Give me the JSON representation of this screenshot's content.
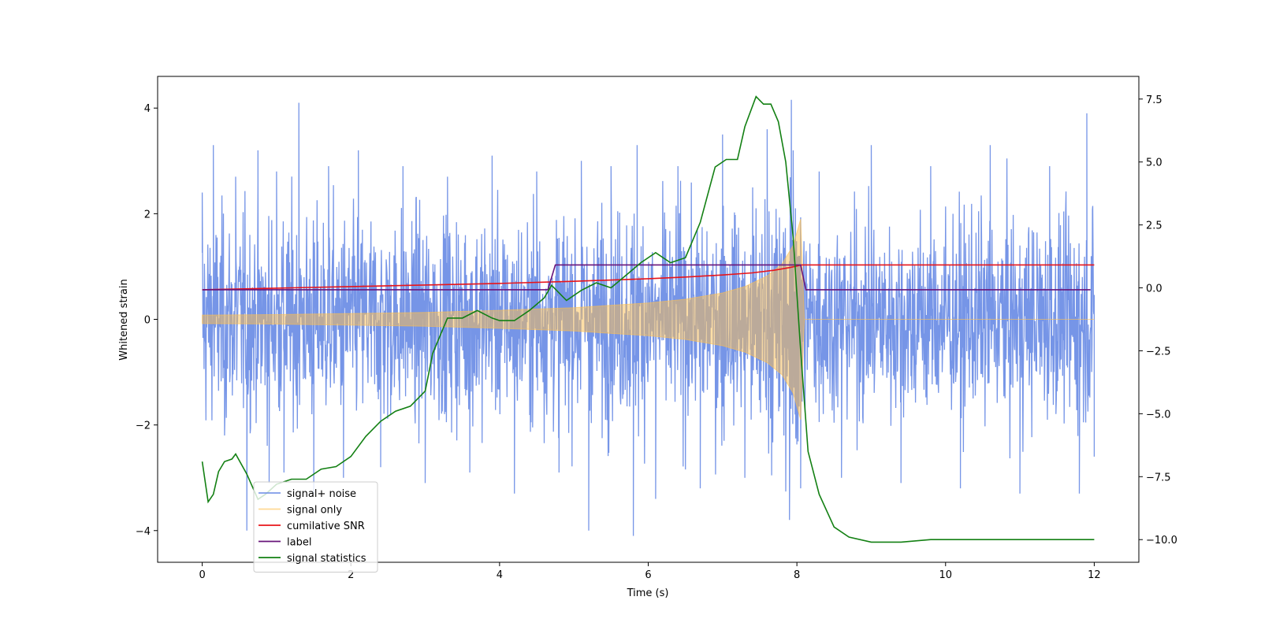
{
  "chart_data": {
    "type": "line",
    "title": "",
    "xlabel": "Time (s)",
    "ylabel_left": "Whitened strain",
    "ylabel_right": "",
    "xlim": [
      -0.6,
      12.6
    ],
    "ylim_left": [
      -4.6,
      4.6
    ],
    "ylim_right": [
      -10.9,
      8.4
    ],
    "grid": false,
    "legend_placement": "lower-left",
    "x_ticks": [
      0,
      2,
      4,
      6,
      8,
      10,
      12
    ],
    "x_tick_labels": [
      "0",
      "2",
      "4",
      "6",
      "8",
      "10",
      "12"
    ],
    "y_left_ticks": [
      -4,
      -2,
      0,
      2,
      4
    ],
    "y_left_tick_labels": [
      "−4",
      "−2",
      "0",
      "2",
      "4"
    ],
    "y_right_ticks": [
      -10,
      -7.5,
      -5,
      -2.5,
      0,
      2.5,
      5,
      7.5
    ],
    "y_right_tick_labels": [
      "−10.0",
      "−7.5",
      "−5.0",
      "−2.5",
      "0.0",
      "2.5",
      "5.0",
      "7.5"
    ],
    "series": [
      {
        "name": "signal+ noise",
        "axis": "left",
        "color": "#6f8fe6",
        "note": "noisy strain; peak samples",
        "x": [
          0.0,
          0.05,
          0.15,
          0.3,
          0.45,
          0.6,
          0.75,
          0.9,
          1.0,
          1.1,
          1.3,
          1.5,
          1.7,
          1.9,
          2.1,
          2.4,
          2.7,
          3.0,
          3.3,
          3.6,
          3.9,
          4.2,
          4.5,
          4.8,
          5.1,
          5.2,
          5.5,
          5.8,
          5.85,
          6.1,
          6.4,
          6.7,
          7.0,
          7.3,
          7.6,
          7.9,
          7.95,
          8.05,
          8.3,
          8.6,
          9.0,
          9.4,
          9.8,
          10.2,
          10.6,
          11.0,
          11.4,
          11.8,
          11.9,
          12.0
        ],
        "y": [
          2.4,
          -1.8,
          3.3,
          -2.2,
          2.7,
          -4.0,
          3.2,
          -3.1,
          2.8,
          -2.9,
          4.1,
          -3.3,
          2.9,
          -3.0,
          3.2,
          -2.8,
          2.9,
          -3.1,
          2.7,
          -2.9,
          3.1,
          -3.3,
          2.8,
          -2.9,
          3.0,
          -4.0,
          2.9,
          -4.1,
          3.3,
          -3.4,
          2.9,
          -3.2,
          3.5,
          -3.0,
          3.6,
          -3.8,
          3.2,
          -3.2,
          2.8,
          -3.0,
          3.3,
          -3.1,
          2.9,
          -3.2,
          3.3,
          -3.3,
          2.9,
          -3.3,
          3.9,
          -2.6
        ]
      },
      {
        "name": "signal only",
        "axis": "left",
        "color": "#ffc04d",
        "note": "chirp envelope, merger at about 8.1 s",
        "x": [
          0,
          1,
          2,
          3,
          4,
          5,
          6,
          6.5,
          7,
          7.3,
          7.6,
          7.8,
          7.95,
          8.05,
          8.1,
          12
        ],
        "y_upper": [
          0.08,
          0.09,
          0.11,
          0.13,
          0.17,
          0.22,
          0.31,
          0.38,
          0.5,
          0.62,
          0.82,
          1.05,
          1.4,
          1.9,
          0.0,
          0.0
        ],
        "y_lower": [
          -0.08,
          -0.09,
          -0.11,
          -0.13,
          -0.17,
          -0.22,
          -0.31,
          -0.38,
          -0.5,
          -0.62,
          -0.82,
          -1.05,
          -1.4,
          -1.9,
          0.0,
          0.0
        ]
      },
      {
        "name": "cumilative SNR",
        "axis": "left",
        "color": "#e8141a",
        "x": [
          0,
          1,
          2,
          3,
          4,
          5,
          6,
          6.5,
          7,
          7.4,
          7.7,
          7.9,
          8.0,
          8.06,
          12
        ],
        "y": [
          0.56,
          0.59,
          0.62,
          0.65,
          0.68,
          0.72,
          0.77,
          0.8,
          0.84,
          0.88,
          0.93,
          0.98,
          1.01,
          1.03,
          1.03
        ]
      },
      {
        "name": "label",
        "axis": "left",
        "color": "#68147a",
        "x": [
          0,
          4.65,
          4.75,
          8.05,
          8.12,
          11.95
        ],
        "y": [
          0.56,
          0.56,
          1.03,
          1.03,
          0.56,
          0.56
        ]
      },
      {
        "name": "signal statistics",
        "axis": "right",
        "color": "#138013",
        "x": [
          0.0,
          0.08,
          0.15,
          0.22,
          0.3,
          0.4,
          0.45,
          0.6,
          0.75,
          0.85,
          1.0,
          1.2,
          1.4,
          1.6,
          1.8,
          2.0,
          2.2,
          2.4,
          2.6,
          2.8,
          3.0,
          3.1,
          3.3,
          3.5,
          3.7,
          3.9,
          4.0,
          4.2,
          4.4,
          4.6,
          4.7,
          4.9,
          5.1,
          5.3,
          5.5,
          5.7,
          5.9,
          6.1,
          6.3,
          6.5,
          6.7,
          6.9,
          7.05,
          7.2,
          7.3,
          7.45,
          7.55,
          7.65,
          7.75,
          7.85,
          7.95,
          8.05,
          8.15,
          8.3,
          8.5,
          8.7,
          9.0,
          9.4,
          9.8,
          10.2,
          10.6,
          11.0,
          11.4,
          11.8,
          12.0
        ],
        "y": [
          -6.9,
          -8.5,
          -8.2,
          -7.3,
          -6.9,
          -6.8,
          -6.6,
          -7.4,
          -8.4,
          -8.2,
          -7.8,
          -7.6,
          -7.6,
          -7.2,
          -7.1,
          -6.7,
          -5.9,
          -5.3,
          -4.9,
          -4.7,
          -4.1,
          -2.6,
          -1.2,
          -1.2,
          -0.9,
          -1.2,
          -1.3,
          -1.3,
          -0.9,
          -0.4,
          0.1,
          -0.5,
          -0.1,
          0.2,
          0.0,
          0.5,
          1.0,
          1.4,
          1.0,
          1.2,
          2.6,
          4.8,
          5.1,
          5.1,
          6.4,
          7.6,
          7.3,
          7.3,
          6.6,
          5.0,
          2.0,
          -2.5,
          -6.5,
          -8.2,
          -9.5,
          -9.9,
          -10.1,
          -10.1,
          -10.0,
          -10.0,
          -10.0,
          -10.0,
          -10.0,
          -10.0,
          -10.0
        ]
      }
    ]
  }
}
